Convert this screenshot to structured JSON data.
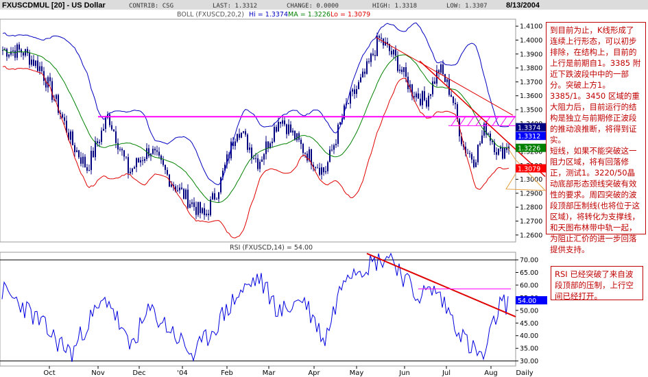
{
  "header": {
    "symbol": "FXUSCDMUL [20] - US Dollar",
    "contrib": "CONTRIB: CSG",
    "last": "LAST: 1.3312",
    "change": "CHANGE: 0.0000",
    "high": "HIGH: 1.3318",
    "low": "LOW: 1.3307",
    "date": "8/13/2004"
  },
  "boll_legend": {
    "prefix": "BOLL (FXUSCD,20,2)",
    "hi": "Hi = 1.3374",
    "ma": "MA = 1.3226",
    "lo": "Lo = 1.3079"
  },
  "rsi_legend": "RSI (FXUSCD,14) = 54.00",
  "x_axis_labels": [
    "Oct",
    "Nov",
    "Dec",
    "'04",
    "Feb",
    "Mar",
    "Apr",
    "May",
    "Jun",
    "Jul",
    "Aug",
    "Daily"
  ],
  "price_axis_labels": [
    "1.4100",
    "1.4000",
    "1.3900",
    "1.3800",
    "1.3700",
    "1.3600",
    "1.3500",
    "1.3400",
    "1.3300",
    "1.3200",
    "1.3100",
    "1.3000",
    "1.2900",
    "1.2800",
    "1.2700",
    "1.2600"
  ],
  "rsi_axis_labels": [
    "70.00",
    "65.00",
    "60.00",
    "55.00",
    "50.00",
    "45.00",
    "40.00",
    "35.00",
    "30.00"
  ],
  "price_badges": {
    "hi": "1.3374",
    "last": "1.3312",
    "ma": "1.3226",
    "lo": "1.3079"
  },
  "rsi_badge": "54.00",
  "annotations": {
    "main": "到目前为止，K线形成了连续上行形态，可以初步排除，在结构上，目前的上行是前期自1。3385 附近下跌波段中中的一部分。突破上方1。3385/1。3450 区域的重大阻力后，目前运行的结构是独立与前期修正波段的推动浪推断，将得到证实。\n短线，如果不能突破这一阻力区域，将有回落修正，测试1。3220/50晶动底部形态颈线突破有效性的要求。周四突破的波段顶部压制线(也将位于这区域)，将转化为支撑线，和天图布林带中轨一起，为阻止汇价的进一步回落提供支持。",
    "rsi": "RSI 已经突破了来自波段顶部的压制，上行空间已经打开。"
  },
  "colors": {
    "candle": "#000080",
    "upper_band": "#0000c0",
    "middle_band": "#008000",
    "lower_band": "#e00000",
    "resistance": "#ff00ff",
    "trendline": "#e00000",
    "rsi_line": "#0000e0",
    "header_bg": "#dcdcdc",
    "badge_hi": "#000080",
    "badge_last": "#0000ff",
    "badge_ma": "#008000",
    "badge_lo": "#ff0000"
  },
  "chart_data": [
    {
      "type": "candlestick",
      "title": "FXUSCDMUL [20] - US Dollar",
      "period": "Daily",
      "ylim": [
        1.255,
        1.415
      ],
      "ohlc_last": {
        "last": 1.3312,
        "high": 1.3318,
        "low": 1.3307
      },
      "bollinger": {
        "period": 20,
        "k": 2,
        "hi": 1.3374,
        "ma": 1.3226,
        "lo": 1.3079
      },
      "price_anchors": [
        [
          "Sep",
          1.392
        ],
        [
          "Sep",
          1.38
        ],
        [
          "Oct",
          1.354
        ],
        [
          "Oct",
          1.326
        ],
        [
          "Oct",
          1.308
        ],
        [
          "Nov",
          1.346
        ],
        [
          "Nov",
          1.305
        ],
        [
          "Dec",
          1.322
        ],
        [
          "Dec",
          1.298
        ],
        [
          "'04",
          1.284
        ],
        [
          "'04",
          1.273
        ],
        [
          "'04",
          1.296
        ],
        [
          "Feb",
          1.338
        ],
        [
          "Feb",
          1.312
        ],
        [
          "Mar",
          1.345
        ],
        [
          "Mar",
          1.322
        ],
        [
          "Apr",
          1.305
        ],
        [
          "Apr",
          1.352
        ],
        [
          "May",
          1.374
        ],
        [
          "May",
          1.401
        ],
        [
          "May",
          1.388
        ],
        [
          "Jun",
          1.364
        ],
        [
          "Jun",
          1.356
        ],
        [
          "Jun",
          1.38
        ],
        [
          "Jul",
          1.36
        ],
        [
          "Jul",
          1.324
        ],
        [
          "Jul",
          1.314
        ],
        [
          "Jul",
          1.338
        ],
        [
          "Aug",
          1.318
        ],
        [
          "Aug",
          1.3312
        ]
      ],
      "resistance_level": 1.345,
      "annotations": [
        "1.3385/1.3450 resistance zone",
        "downtrend line from May high"
      ]
    },
    {
      "type": "line",
      "title": "RSI (FXUSCD,14) = 54.00",
      "ylim": [
        28,
        73
      ],
      "reference_lines": [
        70,
        30
      ],
      "last_value": 54.0,
      "rsi_anchors": [
        [
          "Sep",
          52
        ],
        [
          "Sep",
          45
        ],
        [
          "Oct",
          38
        ],
        [
          "Oct",
          33
        ],
        [
          "Oct",
          45
        ],
        [
          "Nov",
          55
        ],
        [
          "Nov",
          35
        ],
        [
          "Dec",
          50
        ],
        [
          "Dec",
          42
        ],
        [
          "'04",
          32
        ],
        [
          "'04",
          44
        ],
        [
          "Feb",
          56
        ],
        [
          "Feb",
          63
        ],
        [
          "Mar",
          49
        ],
        [
          "Mar",
          55
        ],
        [
          "Apr",
          38
        ],
        [
          "Apr",
          66
        ],
        [
          "May",
          68
        ],
        [
          "May",
          72
        ],
        [
          "Jun",
          56
        ],
        [
          "Jun",
          58
        ],
        [
          "Jul",
          46
        ],
        [
          "Jul",
          36
        ],
        [
          "Jul",
          31
        ],
        [
          "Aug",
          52
        ],
        [
          "Aug",
          54
        ]
      ]
    }
  ]
}
